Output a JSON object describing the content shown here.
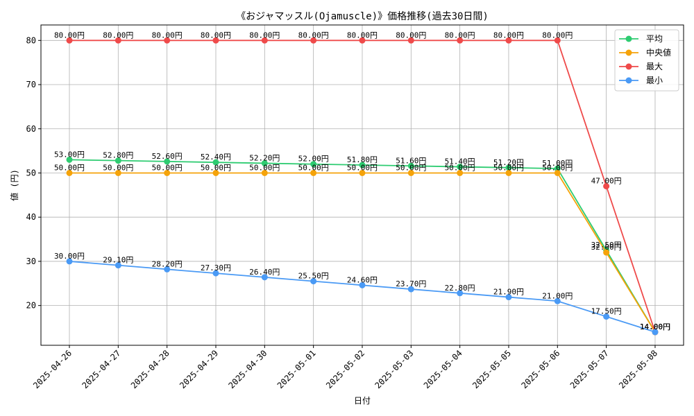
{
  "chart_data": {
    "type": "line",
    "title": "《おジャマッスル(Ojamuscle)》価格推移(過去30日間)",
    "xlabel": "日付",
    "ylabel": "値 (円)",
    "ylim": [
      11,
      83.5
    ],
    "yticks": [
      20,
      30,
      40,
      50,
      60,
      70,
      80
    ],
    "grid": true,
    "legend_position": "top-right",
    "label_suffix": "円",
    "categories": [
      "2025-04-26",
      "2025-04-27",
      "2025-04-28",
      "2025-04-29",
      "2025-04-30",
      "2025-05-01",
      "2025-05-02",
      "2025-05-03",
      "2025-05-04",
      "2025-05-05",
      "2025-05-06",
      "2025-05-07",
      "2025-05-08"
    ],
    "series": [
      {
        "name": "平均",
        "color": "#2ecc71",
        "values": [
          53.0,
          52.8,
          52.6,
          52.4,
          52.2,
          52.0,
          51.8,
          51.6,
          51.4,
          51.2,
          51.0,
          32.5,
          14.0
        ]
      },
      {
        "name": "中央値",
        "color": "#f5a30a",
        "values": [
          50.0,
          50.0,
          50.0,
          50.0,
          50.0,
          50.0,
          50.0,
          50.0,
          50.0,
          50.0,
          50.0,
          32.0,
          14.0
        ]
      },
      {
        "name": "最大",
        "color": "#ef4a4a",
        "values": [
          80.0,
          80.0,
          80.0,
          80.0,
          80.0,
          80.0,
          80.0,
          80.0,
          80.0,
          80.0,
          80.0,
          47.0,
          14.0
        ]
      },
      {
        "name": "最小",
        "color": "#4a9af5",
        "values": [
          30.0,
          29.1,
          28.2,
          27.3,
          26.4,
          25.5,
          24.6,
          23.7,
          22.8,
          21.9,
          21.0,
          17.5,
          14.0
        ]
      }
    ]
  }
}
